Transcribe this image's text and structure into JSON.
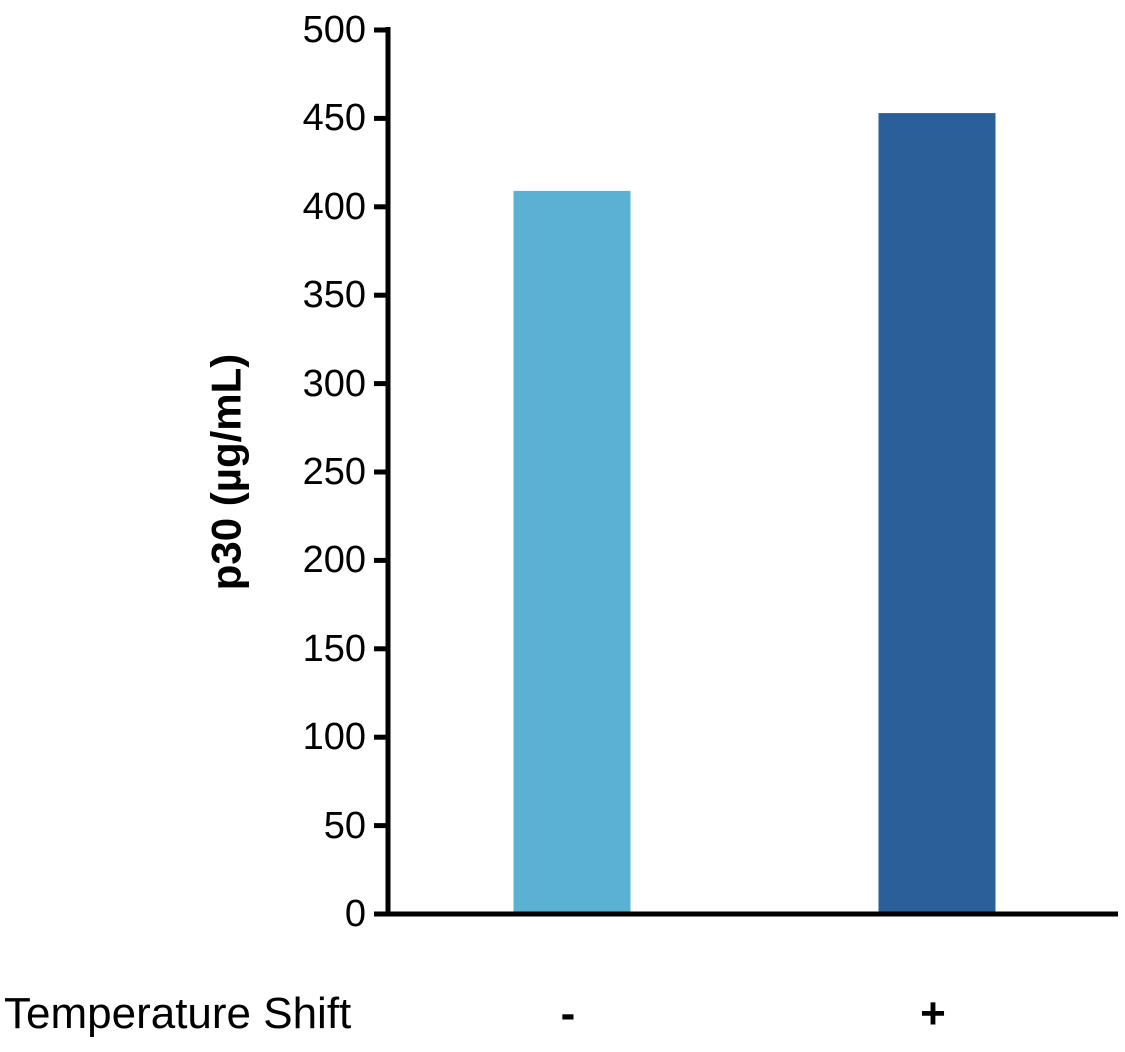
{
  "chart_data": {
    "type": "bar",
    "title": "",
    "xlabel": "Temperature Shift",
    "ylabel": "p30 (µg/mL)",
    "ylim": [
      0,
      500
    ],
    "yticks": [
      0,
      50,
      100,
      150,
      200,
      250,
      300,
      350,
      400,
      450,
      500
    ],
    "categories": [
      "-",
      "+"
    ],
    "values": [
      409,
      453
    ],
    "colors": [
      "#5AB1D1",
      "#2A5F9A"
    ],
    "grid": false,
    "legend": null
  }
}
